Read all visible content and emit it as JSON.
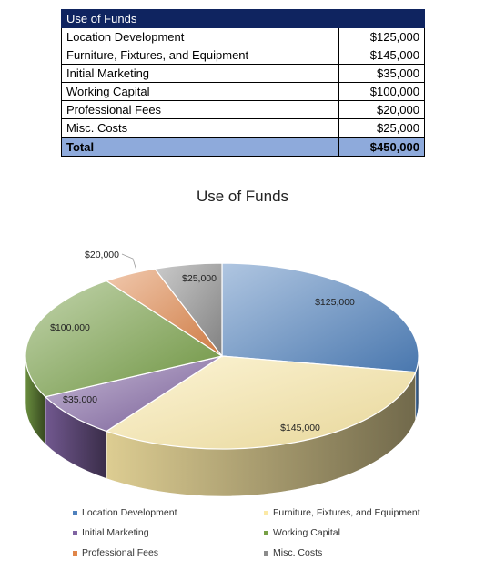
{
  "table": {
    "header": "Use of Funds",
    "rows": [
      {
        "label": "Location Development",
        "amount": "$125,000"
      },
      {
        "label": "Furniture, Fixtures, and Equipment",
        "amount": "$145,000"
      },
      {
        "label": "Initial Marketing",
        "amount": "$35,000"
      },
      {
        "label": "Working Capital",
        "amount": "$100,000"
      },
      {
        "label": "Professional Fees",
        "amount": "$20,000"
      },
      {
        "label": "Misc. Costs",
        "amount": "$25,000"
      }
    ],
    "total_label": "Total",
    "total_amount": "$450,000"
  },
  "chart_data": {
    "type": "pie",
    "title": "Use of Funds",
    "style": "3d",
    "legend_position": "bottom",
    "categories": [
      "Location Development",
      "Furniture, Fixtures, and Equipment",
      "Initial Marketing",
      "Working Capital",
      "Professional Fees",
      "Misc. Costs"
    ],
    "values": [
      125000,
      145000,
      35000,
      100000,
      20000,
      25000
    ],
    "data_labels": [
      "$125,000",
      "$145,000",
      "$35,000",
      "$100,000",
      "$20,000",
      "$25,000"
    ],
    "colors": [
      "#4f81bd",
      "#fbe9a6",
      "#8064a2",
      "#77a046",
      "#e0864a",
      "#8c8c8c"
    ]
  }
}
